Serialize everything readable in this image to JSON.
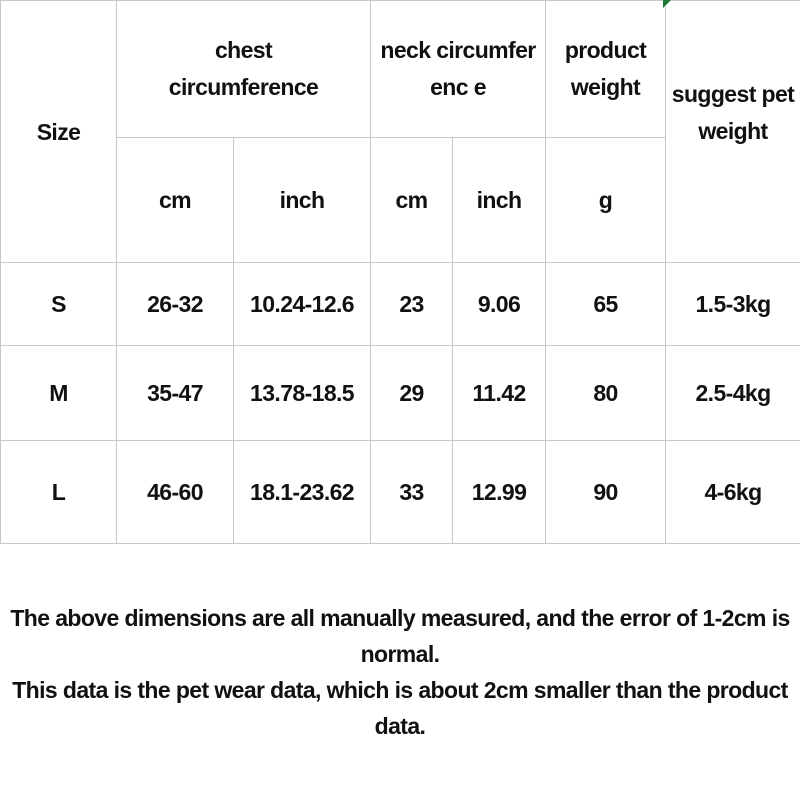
{
  "table": {
    "headers": {
      "size": "Size",
      "chest": "chest circumference",
      "neck": "neck circumferenc e",
      "product_weight": "product weight",
      "suggest": "suggest pet weight",
      "chest_cm": "cm",
      "chest_inch": "inch",
      "neck_cm": "cm",
      "neck_inch": "inch",
      "weight_unit": "g"
    },
    "rows": [
      [
        "S",
        "26-32",
        "10.24-12.6",
        "23",
        "9.06",
        "65",
        "1.5-3kg"
      ],
      [
        "M",
        "35-47",
        "13.78-18.5",
        "29",
        "11.42",
        "80",
        "2.5-4kg"
      ],
      [
        "L",
        "46-60",
        "18.1-23.62",
        "33",
        "12.99",
        "90",
        "4-6kg"
      ]
    ]
  },
  "notes": [
    "The above dimensions are all manually measured, and the error of 1-2cm is normal.",
    "This data is the pet wear data, which is about 2cm smaller than the product data."
  ]
}
